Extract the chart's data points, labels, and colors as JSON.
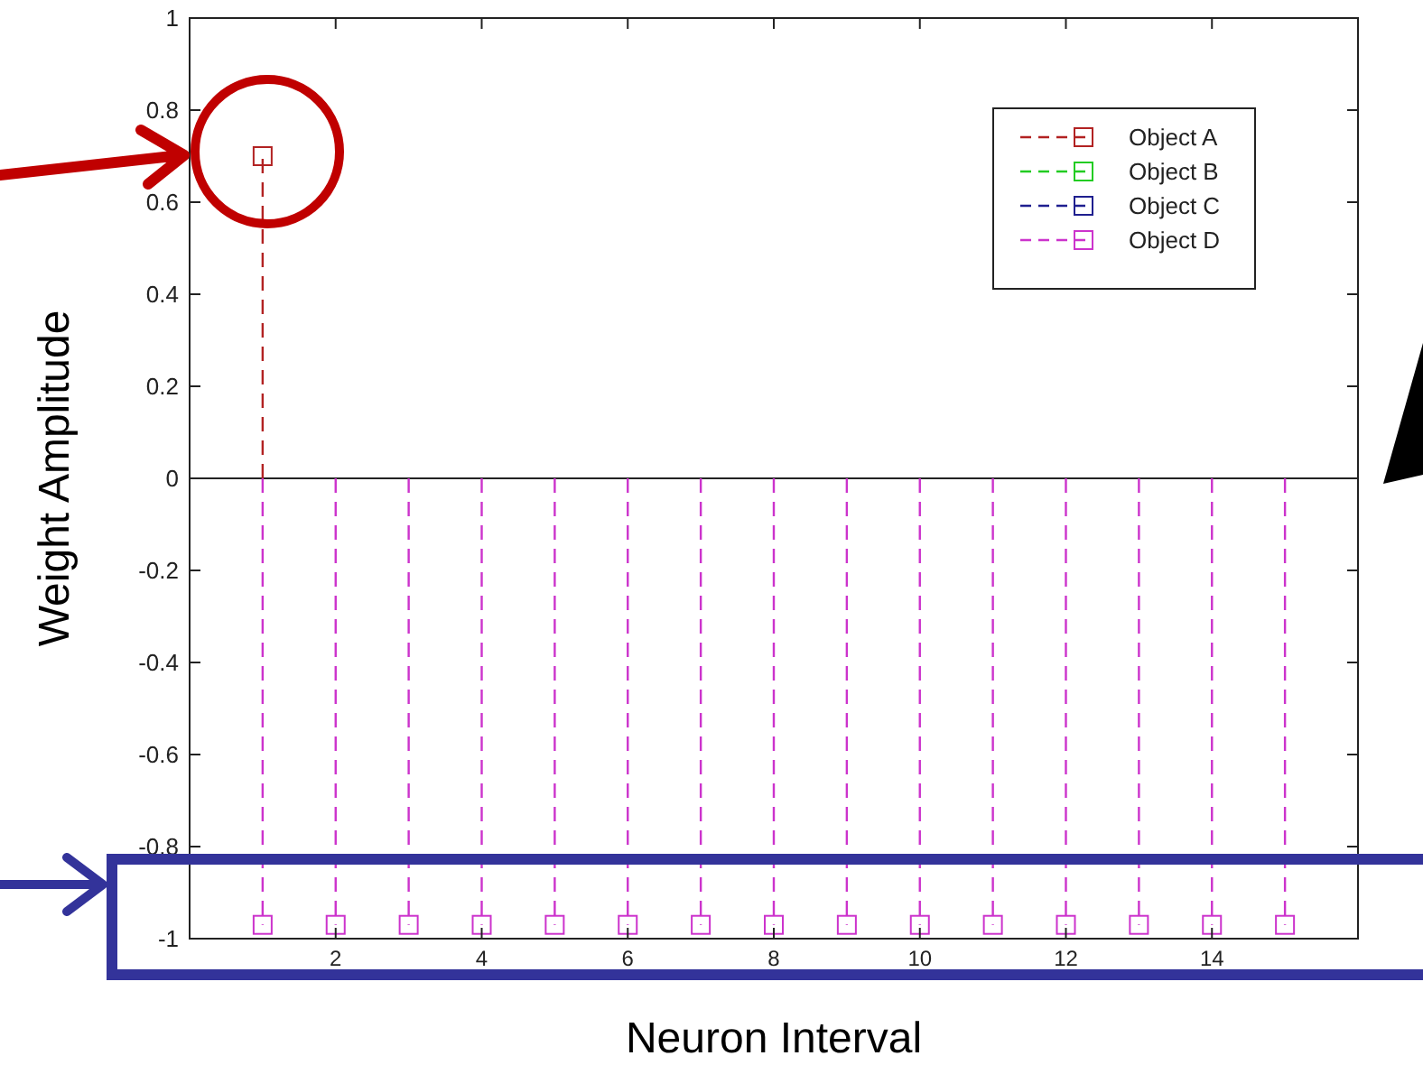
{
  "chart_data": {
    "type": "lollipop",
    "xlabel": "Neuron Interval",
    "ylabel": "Weight Amplitude",
    "x": [
      1,
      2,
      3,
      4,
      5,
      6,
      7,
      8,
      9,
      10,
      11,
      12,
      13,
      14,
      15
    ],
    "series": [
      {
        "name": "Object A",
        "color": "#b22222",
        "values": [
          0.7,
          null,
          null,
          null,
          null,
          null,
          null,
          null,
          null,
          null,
          null,
          null,
          null,
          null,
          null
        ]
      },
      {
        "name": "Object B",
        "color": "#22cc22",
        "values": [
          null,
          null,
          null,
          null,
          null,
          null,
          null,
          null,
          null,
          null,
          null,
          null,
          null,
          null,
          null
        ]
      },
      {
        "name": "Object C",
        "color": "#1f1f8f",
        "values": [
          null,
          null,
          null,
          null,
          null,
          null,
          null,
          null,
          null,
          null,
          null,
          null,
          null,
          null,
          null
        ]
      },
      {
        "name": "Object D",
        "color": "#cc33cc",
        "values": [
          -0.97,
          -0.97,
          -0.97,
          -0.97,
          -0.97,
          -0.97,
          -0.97,
          -0.97,
          -0.97,
          -0.97,
          -0.97,
          -0.97,
          -0.97,
          -0.97,
          -0.97
        ]
      }
    ],
    "xlim": [
      0,
      16
    ],
    "xticks": [
      2,
      4,
      6,
      8,
      10,
      12,
      14
    ],
    "ylim": [
      -1,
      1
    ],
    "yticks": [
      -1,
      -0.8,
      -0.6,
      -0.4,
      -0.2,
      0,
      0.2,
      0.4,
      0.6,
      0.8,
      1
    ],
    "ref_lines": [
      {
        "axis": "y",
        "value": 0,
        "color": "#222222"
      }
    ],
    "legend": "top right",
    "marker": "square",
    "line_style": "dashed",
    "grid": false
  }
}
